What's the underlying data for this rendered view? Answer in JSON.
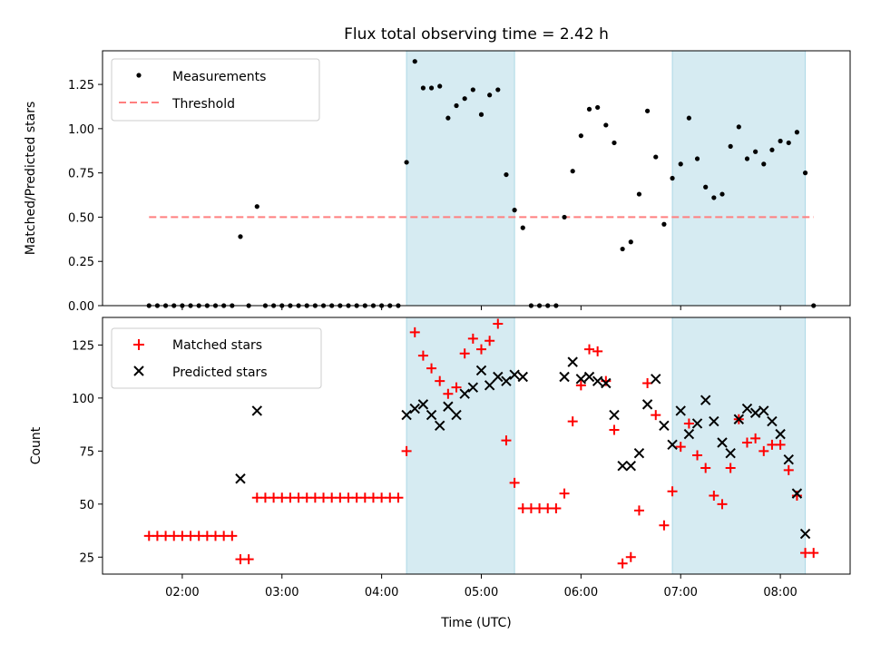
{
  "title": "Flux total observing time = 2.42 h",
  "chart_data": [
    {
      "type": "scatter",
      "panel": "top",
      "ylabel": "Matched/Predicted stars",
      "ylim": [
        0,
        1.44
      ],
      "yticks": [
        0.0,
        0.25,
        0.5,
        0.75,
        1.0,
        1.25
      ],
      "ytick_labels": [
        "0.00",
        "0.25",
        "0.50",
        "0.75",
        "1.00",
        "1.25"
      ],
      "legend": {
        "placement": "top-left",
        "entries": [
          "Measurements",
          "Threshold"
        ]
      },
      "threshold": {
        "name": "Threshold",
        "value": 0.5,
        "x_range": [
          "01:40",
          "08:20"
        ],
        "color": "#ff7f7f",
        "style": "dashed"
      },
      "series": [
        {
          "name": "Measurements",
          "color": "#000000",
          "marker": "dot",
          "points": [
            [
              "01:40",
              0
            ],
            [
              "01:45",
              0
            ],
            [
              "01:50",
              0
            ],
            [
              "01:55",
              0
            ],
            [
              "02:00",
              0
            ],
            [
              "02:05",
              0
            ],
            [
              "02:10",
              0
            ],
            [
              "02:15",
              0
            ],
            [
              "02:20",
              0
            ],
            [
              "02:25",
              0
            ],
            [
              "02:30",
              0
            ],
            [
              "02:35",
              0.39
            ],
            [
              "02:40",
              0
            ],
            [
              "02:45",
              0.56
            ],
            [
              "02:50",
              0
            ],
            [
              "02:55",
              0
            ],
            [
              "03:00",
              0
            ],
            [
              "03:05",
              0
            ],
            [
              "03:10",
              0
            ],
            [
              "03:15",
              0
            ],
            [
              "03:20",
              0
            ],
            [
              "03:25",
              0
            ],
            [
              "03:30",
              0
            ],
            [
              "03:35",
              0
            ],
            [
              "03:40",
              0
            ],
            [
              "03:45",
              0
            ],
            [
              "03:50",
              0
            ],
            [
              "03:55",
              0
            ],
            [
              "04:00",
              0
            ],
            [
              "04:05",
              0
            ],
            [
              "04:10",
              0
            ],
            [
              "04:15",
              0.81
            ],
            [
              "04:20",
              1.38
            ],
            [
              "04:25",
              1.23
            ],
            [
              "04:30",
              1.23
            ],
            [
              "04:35",
              1.24
            ],
            [
              "04:40",
              1.06
            ],
            [
              "04:45",
              1.13
            ],
            [
              "04:50",
              1.17
            ],
            [
              "04:55",
              1.22
            ],
            [
              "05:00",
              1.08
            ],
            [
              "05:05",
              1.19
            ],
            [
              "05:10",
              1.22
            ],
            [
              "05:15",
              0.74
            ],
            [
              "05:20",
              0.54
            ],
            [
              "05:25",
              0.44
            ],
            [
              "05:30",
              0
            ],
            [
              "05:35",
              0
            ],
            [
              "05:40",
              0
            ],
            [
              "05:45",
              0
            ],
            [
              "05:50",
              0.5
            ],
            [
              "05:55",
              0.76
            ],
            [
              "06:00",
              0.96
            ],
            [
              "06:05",
              1.11
            ],
            [
              "06:10",
              1.12
            ],
            [
              "06:15",
              1.02
            ],
            [
              "06:20",
              0.92
            ],
            [
              "06:25",
              0.32
            ],
            [
              "06:30",
              0.36
            ],
            [
              "06:35",
              0.63
            ],
            [
              "06:40",
              1.1
            ],
            [
              "06:45",
              0.84
            ],
            [
              "06:50",
              0.46
            ],
            [
              "06:55",
              0.72
            ],
            [
              "07:00",
              0.8
            ],
            [
              "07:05",
              1.06
            ],
            [
              "07:10",
              0.83
            ],
            [
              "07:15",
              0.67
            ],
            [
              "07:20",
              0.61
            ],
            [
              "07:25",
              0.63
            ],
            [
              "07:30",
              0.9
            ],
            [
              "07:35",
              1.01
            ],
            [
              "07:40",
              0.83
            ],
            [
              "07:45",
              0.87
            ],
            [
              "07:50",
              0.8
            ],
            [
              "07:55",
              0.88
            ],
            [
              "08:00",
              0.93
            ],
            [
              "08:05",
              0.92
            ],
            [
              "08:10",
              0.98
            ],
            [
              "08:15",
              0.75
            ],
            [
              "08:20",
              0
            ]
          ]
        }
      ],
      "shaded_spans": [
        [
          "04:15",
          "05:20"
        ],
        [
          "06:55",
          "08:15"
        ]
      ]
    },
    {
      "type": "scatter",
      "panel": "bottom",
      "xlabel": "Time (UTC)",
      "ylabel": "Count",
      "xlim": [
        "01:12",
        "08:42"
      ],
      "xticks": [
        "02:00",
        "03:00",
        "04:00",
        "05:00",
        "06:00",
        "07:00",
        "08:00"
      ],
      "ylim": [
        17,
        138
      ],
      "yticks": [
        25,
        50,
        75,
        100,
        125
      ],
      "legend": {
        "placement": "top-left",
        "entries": [
          "Matched stars",
          "Predicted stars"
        ]
      },
      "series": [
        {
          "name": "Matched stars",
          "color": "#ff0000",
          "marker": "plus",
          "points": [
            [
              "01:40",
              35
            ],
            [
              "01:45",
              35
            ],
            [
              "01:50",
              35
            ],
            [
              "01:55",
              35
            ],
            [
              "02:00",
              35
            ],
            [
              "02:05",
              35
            ],
            [
              "02:10",
              35
            ],
            [
              "02:15",
              35
            ],
            [
              "02:20",
              35
            ],
            [
              "02:25",
              35
            ],
            [
              "02:30",
              35
            ],
            [
              "02:35",
              24
            ],
            [
              "02:40",
              24
            ],
            [
              "02:45",
              53
            ],
            [
              "02:50",
              53
            ],
            [
              "02:55",
              53
            ],
            [
              "03:00",
              53
            ],
            [
              "03:05",
              53
            ],
            [
              "03:10",
              53
            ],
            [
              "03:15",
              53
            ],
            [
              "03:20",
              53
            ],
            [
              "03:25",
              53
            ],
            [
              "03:30",
              53
            ],
            [
              "03:35",
              53
            ],
            [
              "03:40",
              53
            ],
            [
              "03:45",
              53
            ],
            [
              "03:50",
              53
            ],
            [
              "03:55",
              53
            ],
            [
              "04:00",
              53
            ],
            [
              "04:05",
              53
            ],
            [
              "04:10",
              53
            ],
            [
              "04:15",
              75
            ],
            [
              "04:20",
              131
            ],
            [
              "04:25",
              120
            ],
            [
              "04:30",
              114
            ],
            [
              "04:35",
              108
            ],
            [
              "04:40",
              102
            ],
            [
              "04:45",
              105
            ],
            [
              "04:50",
              121
            ],
            [
              "04:55",
              128
            ],
            [
              "05:00",
              123
            ],
            [
              "05:05",
              127
            ],
            [
              "05:10",
              135
            ],
            [
              "05:15",
              80
            ],
            [
              "05:20",
              60
            ],
            [
              "05:25",
              48
            ],
            [
              "05:30",
              48
            ],
            [
              "05:35",
              48
            ],
            [
              "05:40",
              48
            ],
            [
              "05:45",
              48
            ],
            [
              "05:50",
              55
            ],
            [
              "05:55",
              89
            ],
            [
              "06:00",
              106
            ],
            [
              "06:05",
              123
            ],
            [
              "06:10",
              122
            ],
            [
              "06:15",
              108
            ],
            [
              "06:20",
              85
            ],
            [
              "06:25",
              22
            ],
            [
              "06:30",
              25
            ],
            [
              "06:35",
              47
            ],
            [
              "06:40",
              107
            ],
            [
              "06:45",
              92
            ],
            [
              "06:50",
              40
            ],
            [
              "06:55",
              56
            ],
            [
              "07:00",
              77
            ],
            [
              "07:05",
              88
            ],
            [
              "07:10",
              73
            ],
            [
              "07:15",
              67
            ],
            [
              "07:20",
              54
            ],
            [
              "07:25",
              50
            ],
            [
              "07:30",
              67
            ],
            [
              "07:35",
              90
            ],
            [
              "07:40",
              79
            ],
            [
              "07:45",
              81
            ],
            [
              "07:50",
              75
            ],
            [
              "07:55",
              78
            ],
            [
              "08:00",
              78
            ],
            [
              "08:05",
              66
            ],
            [
              "08:10",
              54
            ],
            [
              "08:15",
              27
            ],
            [
              "08:20",
              27
            ]
          ]
        },
        {
          "name": "Predicted stars",
          "color": "#000000",
          "marker": "x",
          "points": [
            [
              "02:35",
              62
            ],
            [
              "02:45",
              94
            ],
            [
              "04:15",
              92
            ],
            [
              "04:20",
              95
            ],
            [
              "04:25",
              97
            ],
            [
              "04:30",
              92
            ],
            [
              "04:35",
              87
            ],
            [
              "04:40",
              96
            ],
            [
              "04:45",
              92
            ],
            [
              "04:50",
              102
            ],
            [
              "04:55",
              105
            ],
            [
              "05:00",
              113
            ],
            [
              "05:05",
              106
            ],
            [
              "05:10",
              110
            ],
            [
              "05:15",
              108
            ],
            [
              "05:20",
              111
            ],
            [
              "05:25",
              110
            ],
            [
              "05:50",
              110
            ],
            [
              "05:55",
              117
            ],
            [
              "06:00",
              109
            ],
            [
              "06:05",
              110
            ],
            [
              "06:10",
              108
            ],
            [
              "06:15",
              107
            ],
            [
              "06:20",
              92
            ],
            [
              "06:25",
              68
            ],
            [
              "06:30",
              68
            ],
            [
              "06:35",
              74
            ],
            [
              "06:40",
              97
            ],
            [
              "06:45",
              109
            ],
            [
              "06:50",
              87
            ],
            [
              "06:55",
              78
            ],
            [
              "07:00",
              94
            ],
            [
              "07:05",
              83
            ],
            [
              "07:10",
              88
            ],
            [
              "07:15",
              99
            ],
            [
              "07:20",
              89
            ],
            [
              "07:25",
              79
            ],
            [
              "07:30",
              74
            ],
            [
              "07:35",
              90
            ],
            [
              "07:40",
              95
            ],
            [
              "07:45",
              93
            ],
            [
              "07:50",
              94
            ],
            [
              "07:55",
              89
            ],
            [
              "08:00",
              83
            ],
            [
              "08:05",
              71
            ],
            [
              "08:10",
              55
            ],
            [
              "08:15",
              36
            ]
          ]
        }
      ],
      "shaded_spans": [
        [
          "04:15",
          "05:20"
        ],
        [
          "06:55",
          "08:15"
        ]
      ]
    }
  ]
}
